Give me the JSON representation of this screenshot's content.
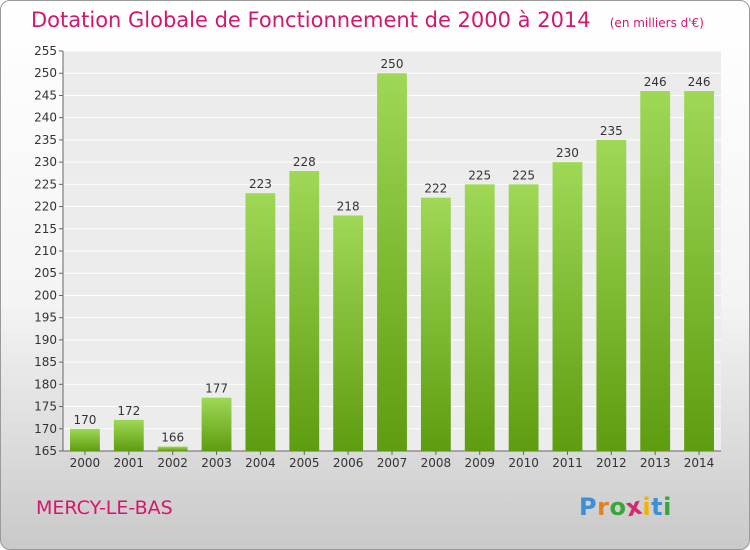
{
  "header": {
    "title": "Dotation Globale de Fonctionnement de 2000 à 2014",
    "unit": "(en milliers d'€)"
  },
  "commune": "MERCY-LE-BAS",
  "logo": {
    "letters": [
      "P",
      "r",
      "o",
      "x",
      "i",
      "t",
      "i"
    ],
    "colors": [
      "#3d8fd6",
      "#e67e22",
      "#3aa53a",
      "#d6286e",
      "#f0b400",
      "#3d8fd6",
      "#3aa53a"
    ]
  },
  "colors": {
    "bar_top": "#9fd856",
    "bar_bottom": "#5e9c10",
    "accent": "#d3176e"
  },
  "chart_data": {
    "type": "bar",
    "categories": [
      "2000",
      "2001",
      "2002",
      "2003",
      "2004",
      "2005",
      "2006",
      "2007",
      "2008",
      "2009",
      "2010",
      "2011",
      "2012",
      "2013",
      "2014"
    ],
    "values": [
      170,
      172,
      166,
      177,
      223,
      228,
      218,
      250,
      222,
      225,
      225,
      230,
      235,
      246,
      246
    ],
    "ylim": [
      165,
      255
    ],
    "yticks": [
      165,
      170,
      175,
      180,
      185,
      190,
      195,
      200,
      205,
      210,
      215,
      220,
      225,
      230,
      235,
      240,
      245,
      250,
      255
    ],
    "grid": true
  }
}
